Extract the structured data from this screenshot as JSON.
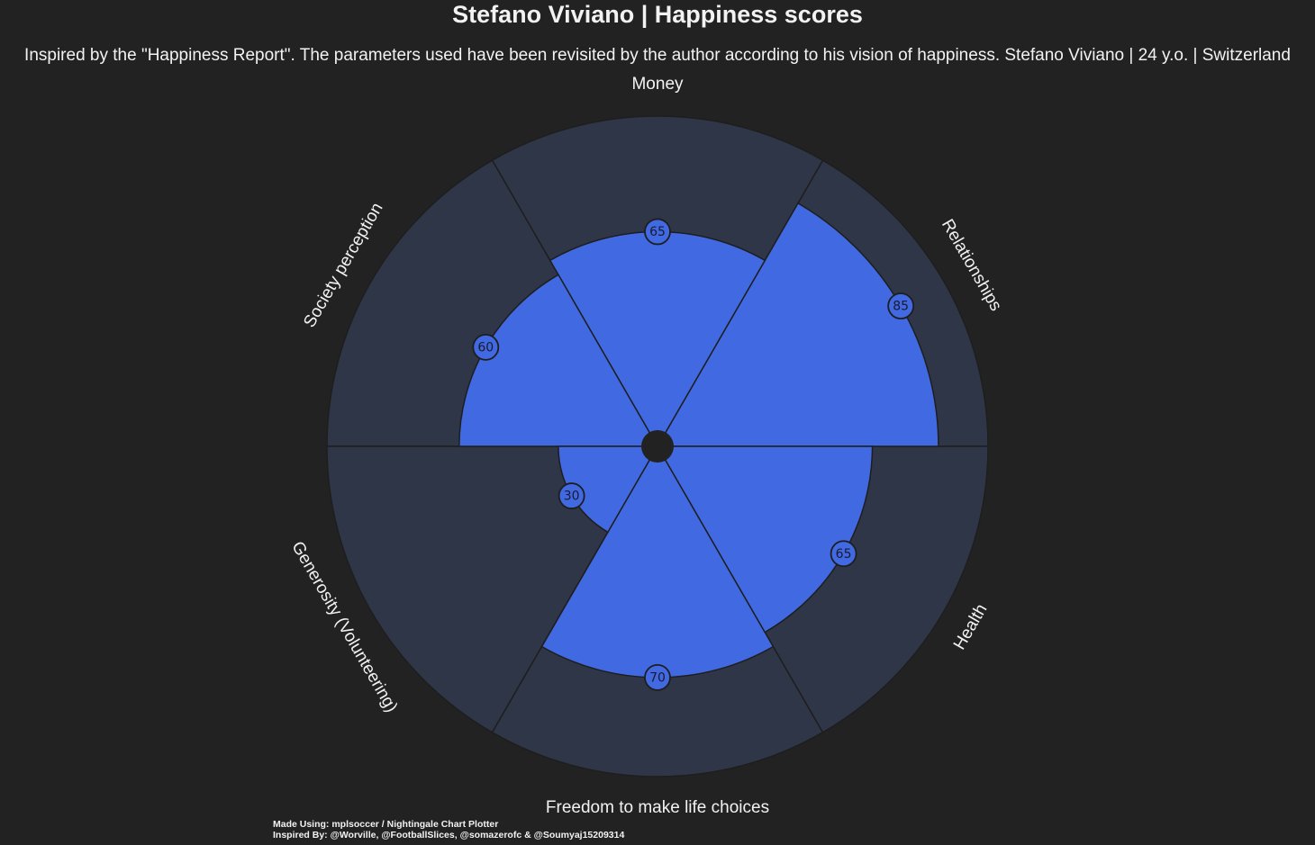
{
  "header": {
    "title": "Stefano Viviano | Happiness scores",
    "subtitle": "Inspired by the \"Happiness Report\". The parameters used have been revisited by the author according to his vision of happiness. Stefano Viviano | 24 y.o. | Switzerland"
  },
  "footer": {
    "made_using": "Made Using: mplsoccer / Nightingale Chart Plotter",
    "inspired_by": "Inspired By: @Worville, @FootballSlices, @somazerofc & @Soumyaj15209314"
  },
  "colors": {
    "background": "#222222",
    "slice_background": "#2E3648",
    "slice_value": "#4169E1",
    "edge": "#1E1E1E",
    "text": "#F2F2F2",
    "value_label_text": "#1A1A2E"
  },
  "chart_data": {
    "type": "pie",
    "variant": "nightingale",
    "title": "Stefano Viviano | Happiness scores",
    "rlim": [
      0,
      100
    ],
    "categories": [
      "Relationships",
      "Money",
      "Society perception",
      "Generosity (Volunteering)",
      "Freedom to make life choices",
      "Health"
    ],
    "values": [
      85,
      65,
      60,
      30,
      70,
      65
    ],
    "value_labels": [
      "85",
      "65",
      "60",
      "30",
      "70",
      "65"
    ]
  }
}
